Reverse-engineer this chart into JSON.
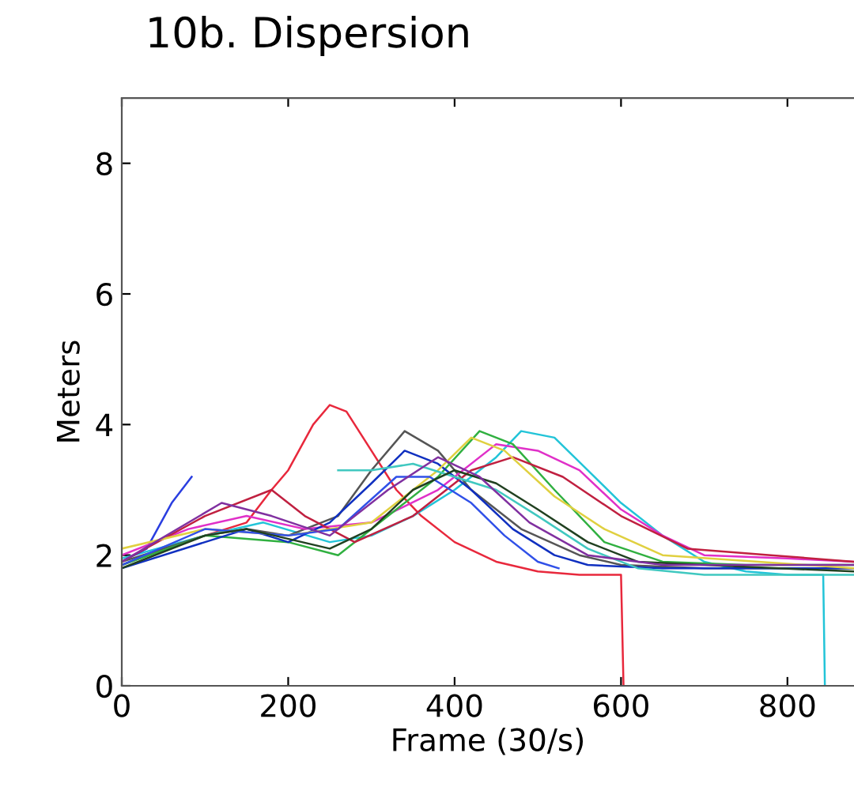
{
  "chart_data": {
    "type": "line",
    "title": "10b. Dispersion",
    "xlabel": "Frame (30/s)",
    "ylabel": "Meters",
    "xlim": [
      0,
      880
    ],
    "ylim": [
      0,
      9
    ],
    "xticks": [
      0,
      200,
      400,
      600,
      800
    ],
    "yticks": [
      0,
      2,
      4,
      6,
      8
    ],
    "grid": false,
    "line_style": "solid",
    "marker": "none",
    "series": [
      {
        "color": "#e8283c",
        "x": [
          0,
          50,
          100,
          150,
          180,
          200,
          230,
          250,
          270,
          300,
          330,
          360,
          400,
          450,
          500,
          550,
          600,
          603
        ],
        "values": [
          1.85,
          2.1,
          2.3,
          2.5,
          3.0,
          3.3,
          4.0,
          4.3,
          4.2,
          3.6,
          3.0,
          2.6,
          2.2,
          1.9,
          1.75,
          1.7,
          1.7,
          0
        ]
      },
      {
        "color": "#22c4d8",
        "x": [
          0,
          100,
          170,
          250,
          300,
          350,
          400,
          450,
          480,
          520,
          560,
          600,
          650,
          700,
          750,
          800,
          843,
          845
        ],
        "values": [
          1.95,
          2.3,
          2.5,
          2.2,
          2.3,
          2.6,
          3.0,
          3.5,
          3.9,
          3.8,
          3.3,
          2.8,
          2.3,
          1.9,
          1.75,
          1.7,
          1.7,
          0
        ]
      },
      {
        "color": "#2a3ee0",
        "x": [
          0,
          30,
          60,
          84
        ],
        "values": [
          1.9,
          2.1,
          2.8,
          3.2
        ]
      },
      {
        "color": "#555555",
        "x": [
          0,
          100,
          150,
          200,
          260,
          300,
          340,
          380,
          420,
          480,
          550,
          600,
          700,
          800,
          880
        ],
        "values": [
          1.9,
          2.3,
          2.4,
          2.3,
          2.6,
          3.3,
          3.9,
          3.6,
          3.0,
          2.4,
          2.0,
          1.85,
          1.8,
          1.8,
          1.8
        ]
      },
      {
        "color": "#e030c8",
        "x": [
          0,
          80,
          150,
          220,
          300,
          380,
          450,
          500,
          550,
          600,
          650,
          700,
          800,
          880
        ],
        "values": [
          2.0,
          2.4,
          2.6,
          2.4,
          2.5,
          3.0,
          3.7,
          3.6,
          3.3,
          2.7,
          2.3,
          2.0,
          1.95,
          1.9
        ]
      },
      {
        "color": "#30b040",
        "x": [
          0,
          100,
          200,
          260,
          320,
          380,
          430,
          470,
          520,
          580,
          650,
          750,
          880
        ],
        "values": [
          1.85,
          2.3,
          2.2,
          2.0,
          2.6,
          3.2,
          3.9,
          3.7,
          3.0,
          2.2,
          1.9,
          1.85,
          1.85
        ]
      },
      {
        "color": "#1030c0",
        "x": [
          0,
          100,
          150,
          200,
          250,
          300,
          340,
          380,
          420,
          470,
          520,
          560,
          650,
          880
        ],
        "values": [
          1.8,
          2.2,
          2.4,
          2.2,
          2.5,
          3.1,
          3.6,
          3.4,
          3.0,
          2.4,
          2.0,
          1.85,
          1.8,
          1.8
        ]
      },
      {
        "color": "#c02040",
        "x": [
          0,
          100,
          180,
          220,
          280,
          350,
          420,
          470,
          530,
          600,
          680,
          780,
          880
        ],
        "values": [
          1.9,
          2.6,
          3.0,
          2.6,
          2.2,
          2.6,
          3.3,
          3.5,
          3.2,
          2.6,
          2.1,
          2.0,
          1.9
        ]
      },
      {
        "color": "#e0d040",
        "x": [
          0,
          100,
          200,
          300,
          380,
          420,
          460,
          520,
          580,
          650,
          880
        ],
        "values": [
          2.1,
          2.4,
          2.3,
          2.5,
          3.3,
          3.8,
          3.6,
          2.9,
          2.4,
          2.0,
          1.8
        ]
      },
      {
        "color": "#40c8c0",
        "x": [
          260,
          300,
          350,
          400,
          450,
          500,
          560,
          620,
          700,
          880
        ],
        "values": [
          3.3,
          3.3,
          3.4,
          3.2,
          3.0,
          2.6,
          2.1,
          1.8,
          1.7,
          1.7
        ]
      },
      {
        "color": "#3050e8",
        "x": [
          0,
          100,
          200,
          260,
          330,
          370,
          420,
          460,
          500,
          525
        ],
        "values": [
          1.85,
          2.4,
          2.3,
          2.4,
          3.2,
          3.2,
          2.8,
          2.3,
          1.9,
          1.8
        ]
      },
      {
        "color": "#204020",
        "x": [
          0,
          100,
          150,
          250,
          300,
          350,
          400,
          450,
          500,
          560,
          620,
          700,
          880
        ],
        "values": [
          1.8,
          2.3,
          2.4,
          2.1,
          2.4,
          3.0,
          3.3,
          3.1,
          2.7,
          2.2,
          1.9,
          1.85,
          1.75
        ]
      },
      {
        "color": "#8030a0",
        "x": [
          0,
          120,
          180,
          250,
          320,
          380,
          430,
          490,
          560,
          650,
          880
        ],
        "values": [
          1.9,
          2.8,
          2.6,
          2.3,
          3.0,
          3.5,
          3.2,
          2.5,
          2.0,
          1.85,
          1.85
        ]
      }
    ]
  }
}
